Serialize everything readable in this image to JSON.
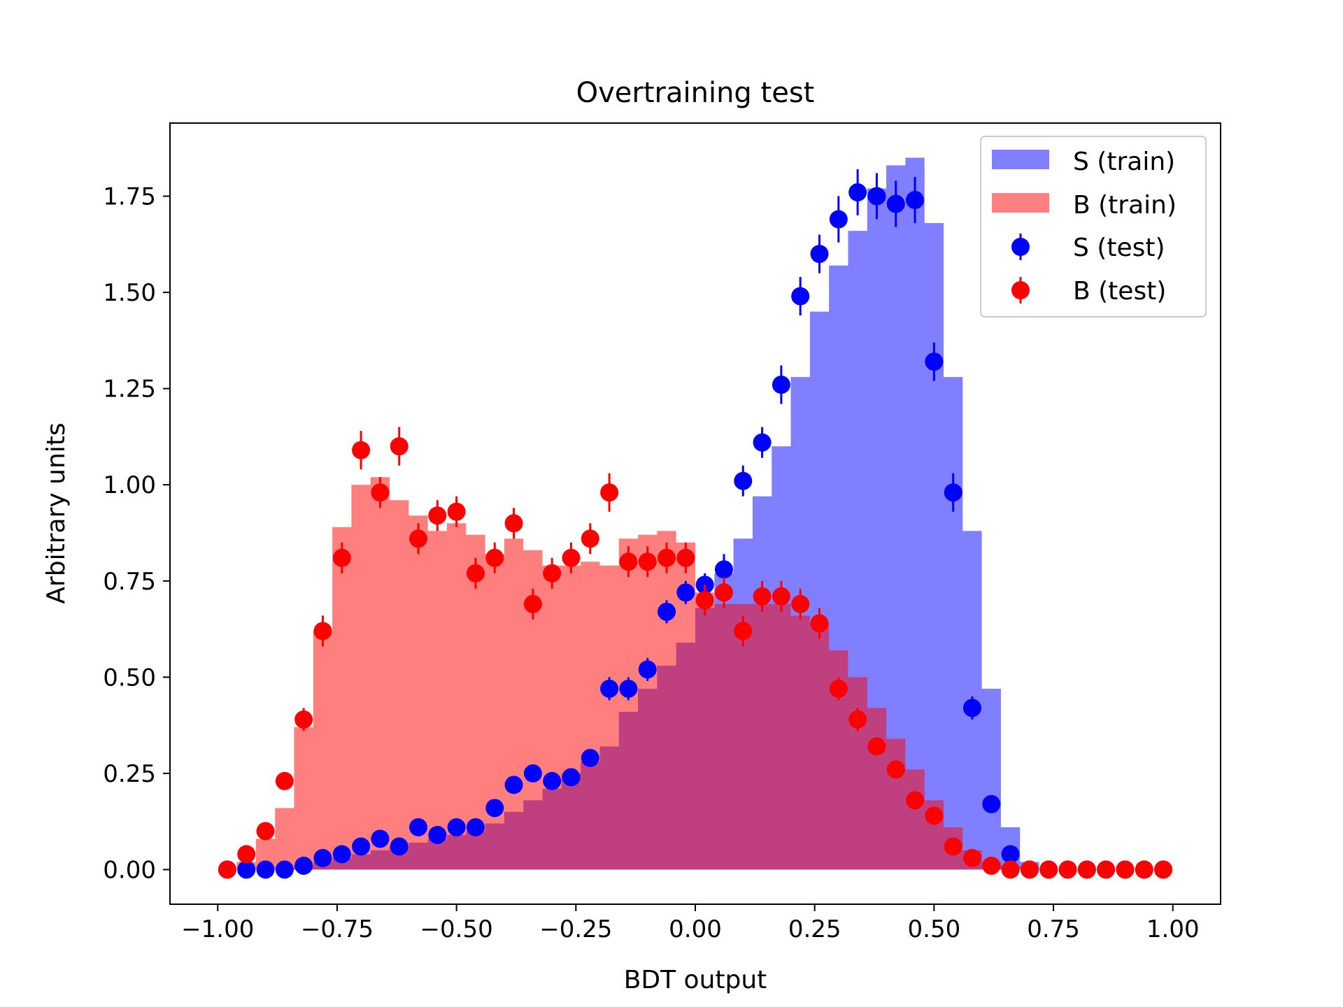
{
  "chart_data": {
    "type": "histogram",
    "title": "Overtraining test",
    "xlabel": "BDT output",
    "ylabel": "Arbitrary units",
    "xlim": [
      -1.1,
      1.1
    ],
    "ylim": [
      -0.09,
      1.94
    ],
    "xticks": [
      -1.0,
      -0.75,
      -0.5,
      -0.25,
      0.0,
      0.25,
      0.5,
      0.75,
      1.0
    ],
    "xtick_labels": [
      "−1.00",
      "−0.75",
      "−0.50",
      "−0.25",
      "0.00",
      "0.25",
      "0.50",
      "0.75",
      "1.00"
    ],
    "yticks": [
      0.0,
      0.25,
      0.5,
      0.75,
      1.0,
      1.25,
      1.5,
      1.75
    ],
    "ytick_labels": [
      "0.00",
      "0.25",
      "0.50",
      "0.75",
      "1.00",
      "1.25",
      "1.50",
      "1.75"
    ],
    "grid": false,
    "legend_position": "top-right",
    "bin_edges": [
      -1.0,
      -0.96,
      -0.92,
      -0.88,
      -0.84,
      -0.8,
      -0.76,
      -0.72,
      -0.68,
      -0.64,
      -0.6,
      -0.56,
      -0.52,
      -0.48,
      -0.44,
      -0.4,
      -0.36,
      -0.32,
      -0.28,
      -0.24,
      -0.2,
      -0.16,
      -0.12,
      -0.08,
      -0.04,
      0.0,
      0.04,
      0.08,
      0.12,
      0.16,
      0.2,
      0.24,
      0.28,
      0.32,
      0.36,
      0.4,
      0.44,
      0.48,
      0.52,
      0.56,
      0.6,
      0.64,
      0.68,
      0.72,
      0.76,
      0.8,
      0.84,
      0.88,
      0.92,
      0.96,
      1.0
    ],
    "series": [
      {
        "name": "S (train)",
        "kind": "filled-step",
        "color": "#8080ff",
        "values": [
          0,
          0,
          0,
          0,
          0.01,
          0.02,
          0.03,
          0.04,
          0.05,
          0.06,
          0.07,
          0.08,
          0.09,
          0.1,
          0.12,
          0.15,
          0.18,
          0.21,
          0.25,
          0.28,
          0.32,
          0.41,
          0.47,
          0.53,
          0.59,
          0.68,
          0.77,
          0.86,
          0.97,
          1.1,
          1.28,
          1.45,
          1.57,
          1.66,
          1.77,
          1.83,
          1.85,
          1.68,
          1.28,
          0.88,
          0.47,
          0.11,
          0.02,
          0,
          0,
          0,
          0,
          0,
          0,
          0
        ]
      },
      {
        "name": "B (train)",
        "kind": "filled-step",
        "color": "#ff8080",
        "values": [
          0,
          0.02,
          0.08,
          0.16,
          0.37,
          0.62,
          0.89,
          1.0,
          1.02,
          0.96,
          0.92,
          0.88,
          0.9,
          0.87,
          0.82,
          0.86,
          0.83,
          0.79,
          0.79,
          0.8,
          0.79,
          0.86,
          0.87,
          0.88,
          0.85,
          0.72,
          0.69,
          0.69,
          0.69,
          0.69,
          0.66,
          0.64,
          0.57,
          0.5,
          0.42,
          0.34,
          0.26,
          0.18,
          0.11,
          0.05,
          0.02,
          0.01,
          0,
          0,
          0,
          0,
          0,
          0,
          0,
          0
        ]
      },
      {
        "name": "S (test)",
        "kind": "points-errorbars",
        "color": "#0000ff",
        "values": [
          0,
          0,
          0,
          0,
          0.01,
          0.03,
          0.04,
          0.06,
          0.08,
          0.06,
          0.11,
          0.09,
          0.11,
          0.11,
          0.16,
          0.22,
          0.25,
          0.23,
          0.24,
          0.29,
          0.47,
          0.47,
          0.52,
          0.67,
          0.72,
          0.74,
          0.78,
          1.01,
          1.11,
          1.26,
          1.49,
          1.6,
          1.69,
          1.76,
          1.75,
          1.73,
          1.74,
          1.32,
          0.98,
          0.42,
          0.17,
          0.04,
          0,
          0,
          0,
          0,
          0,
          0,
          0,
          0
        ],
        "errors": [
          0,
          0,
          0,
          0,
          0.01,
          0.01,
          0.01,
          0.01,
          0.01,
          0.01,
          0.02,
          0.02,
          0.02,
          0.02,
          0.02,
          0.02,
          0.02,
          0.02,
          0.02,
          0.02,
          0.03,
          0.03,
          0.03,
          0.03,
          0.03,
          0.03,
          0.04,
          0.04,
          0.04,
          0.05,
          0.05,
          0.05,
          0.06,
          0.06,
          0.06,
          0.06,
          0.06,
          0.05,
          0.05,
          0.03,
          0.02,
          0.01,
          0,
          0,
          0,
          0,
          0,
          0,
          0,
          0
        ]
      },
      {
        "name": "B (test)",
        "kind": "points-errorbars",
        "color": "#ff0000",
        "values": [
          0,
          0.04,
          0.1,
          0.23,
          0.39,
          0.62,
          0.81,
          1.09,
          0.98,
          1.1,
          0.86,
          0.92,
          0.93,
          0.77,
          0.81,
          0.9,
          0.69,
          0.77,
          0.81,
          0.86,
          0.98,
          0.8,
          0.8,
          0.81,
          0.81,
          0.7,
          0.72,
          0.62,
          0.71,
          0.71,
          0.69,
          0.64,
          0.47,
          0.39,
          0.32,
          0.26,
          0.18,
          0.14,
          0.06,
          0.03,
          0.01,
          0,
          0,
          0,
          0,
          0,
          0,
          0,
          0,
          0
        ],
        "errors": [
          0,
          0.01,
          0.01,
          0.02,
          0.03,
          0.04,
          0.04,
          0.05,
          0.04,
          0.05,
          0.04,
          0.04,
          0.04,
          0.04,
          0.04,
          0.04,
          0.04,
          0.04,
          0.04,
          0.04,
          0.05,
          0.04,
          0.04,
          0.04,
          0.04,
          0.04,
          0.04,
          0.04,
          0.04,
          0.04,
          0.04,
          0.04,
          0.03,
          0.03,
          0.02,
          0.02,
          0.02,
          0.02,
          0.01,
          0.01,
          0.01,
          0,
          0,
          0,
          0,
          0,
          0,
          0,
          0,
          0
        ]
      }
    ],
    "mixed_overlap_color": "#c04080"
  }
}
